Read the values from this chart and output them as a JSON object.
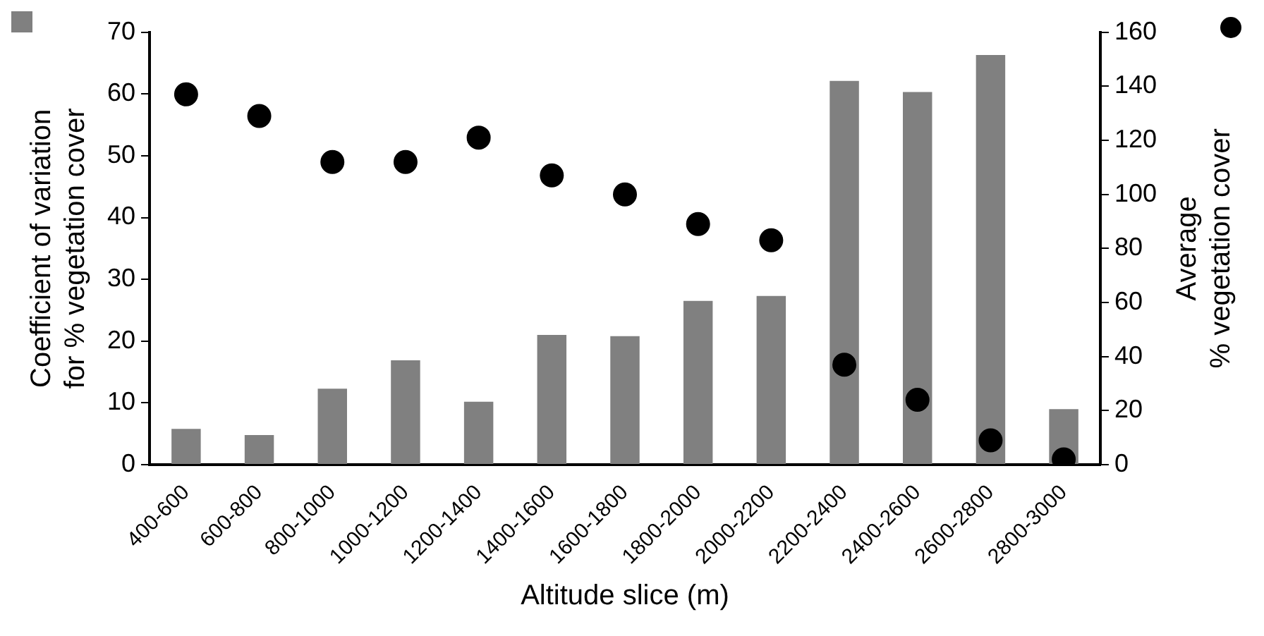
{
  "chart_data": {
    "type": "bar",
    "xlabel": "Altitude slice (m)",
    "ylabel": "Coefficient of variation\nfor % vegetation cover",
    "y2label": "Average\n% vegetation cover",
    "categories": [
      "400-600",
      "600-800",
      "800-1000",
      "1000-1200",
      "1200-1400",
      "1400-1600",
      "1600-1800",
      "1800-2000",
      "2000-2200",
      "2200-2400",
      "2400-2600",
      "2600-2800",
      "2800-3000"
    ],
    "series": [
      {
        "color": "#808080",
        "values": [
          5.8,
          4.8,
          12.3,
          16.9,
          10.2,
          21.0,
          20.8,
          26.5,
          27.3,
          62.1,
          60.3,
          66.3,
          9.0
        ]
      },
      {
        "type": "scatter",
        "axis": "y2",
        "color": "#000000",
        "marker": "circle",
        "values": [
          137,
          129,
          112,
          112,
          121,
          107,
          100,
          89,
          83,
          37,
          24,
          9,
          2
        ]
      }
    ],
    "ylim": [
      0,
      70
    ],
    "yticks": [
      0,
      10,
      20,
      30,
      40,
      50,
      60,
      70
    ],
    "y2lim": [
      0,
      160
    ],
    "y2ticks": [
      0,
      20,
      40,
      60,
      80,
      100,
      120,
      140,
      160
    ],
    "grid": false,
    "legend": false
  }
}
